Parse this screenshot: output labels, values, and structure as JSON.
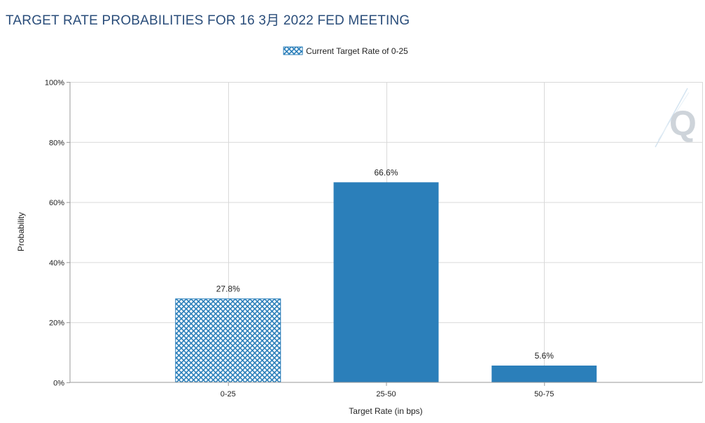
{
  "chart_data": {
    "type": "bar",
    "title": "TARGET RATE PROBABILITIES FOR 16 3月 2022 FED MEETING",
    "legend": {
      "label": "Current Target Rate of 0-25",
      "position": "top-center"
    },
    "xlabel": "Target Rate (in bps)",
    "ylabel": "Probability",
    "categories": [
      "0-25",
      "25-50",
      "50-75"
    ],
    "values": [
      27.8,
      66.6,
      5.6
    ],
    "value_labels": [
      "27.8%",
      "66.6%",
      "5.6%"
    ],
    "hatched_category": "0-25",
    "ylim": [
      0,
      100
    ],
    "yticks": [
      0,
      20,
      40,
      60,
      80,
      100
    ],
    "ytick_labels": [
      "0%",
      "20%",
      "40%",
      "60%",
      "80%",
      "100%"
    ],
    "grid": true,
    "colors": {
      "bar": "#2b7fba",
      "title": "#2a4d7a",
      "grid": "#d9d9d9",
      "axis": "#9a9a9a"
    }
  }
}
